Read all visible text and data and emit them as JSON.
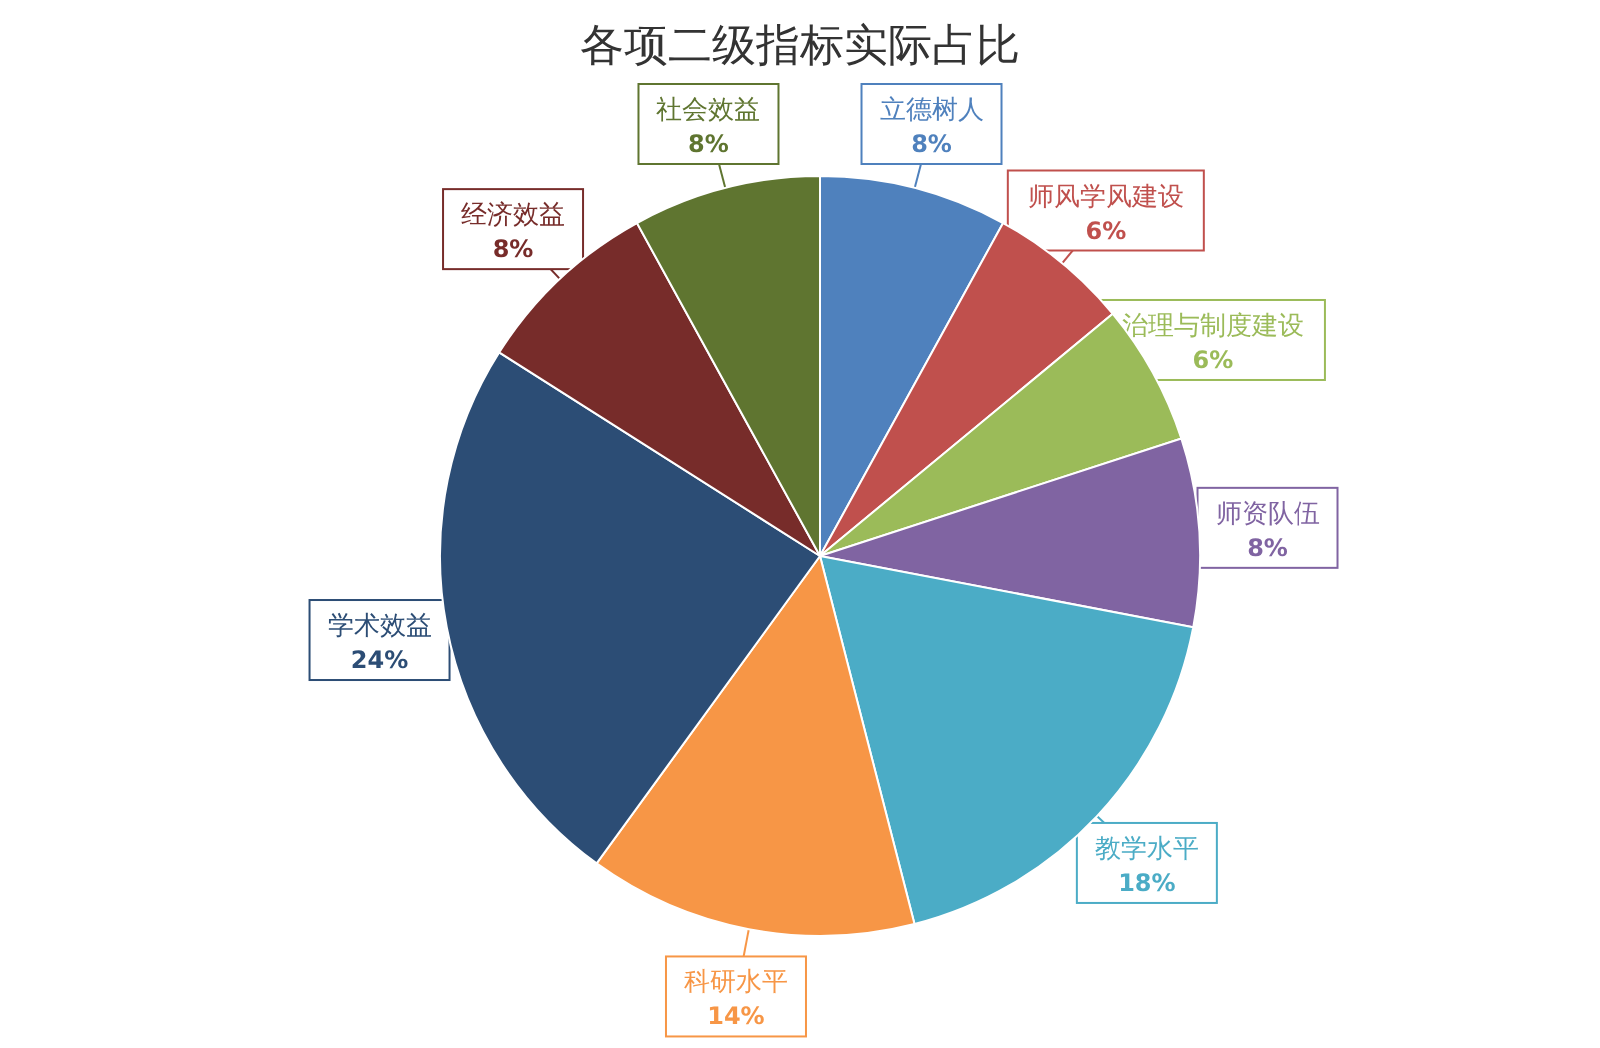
{
  "chart_data": {
    "type": "pie",
    "title": "各项二级指标实际占比",
    "categories": [
      "立德树人",
      "师风学风建设",
      "治理与制度建设",
      "师资队伍",
      "教学水平",
      "科研水平",
      "学术效益",
      "经济效益",
      "社会效益"
    ],
    "values": [
      8,
      6,
      6,
      8,
      18,
      14,
      24,
      8,
      8
    ],
    "value_labels": [
      "8%",
      "6%",
      "6%",
      "8%",
      "18%",
      "14%",
      "24%",
      "8%",
      "8%"
    ],
    "colors": [
      "#4f81bd",
      "#c0504d",
      "#9bbb59",
      "#8064a2",
      "#4bacc6",
      "#f79646",
      "#2c4d75",
      "#772c2a",
      "#5f7530"
    ]
  }
}
